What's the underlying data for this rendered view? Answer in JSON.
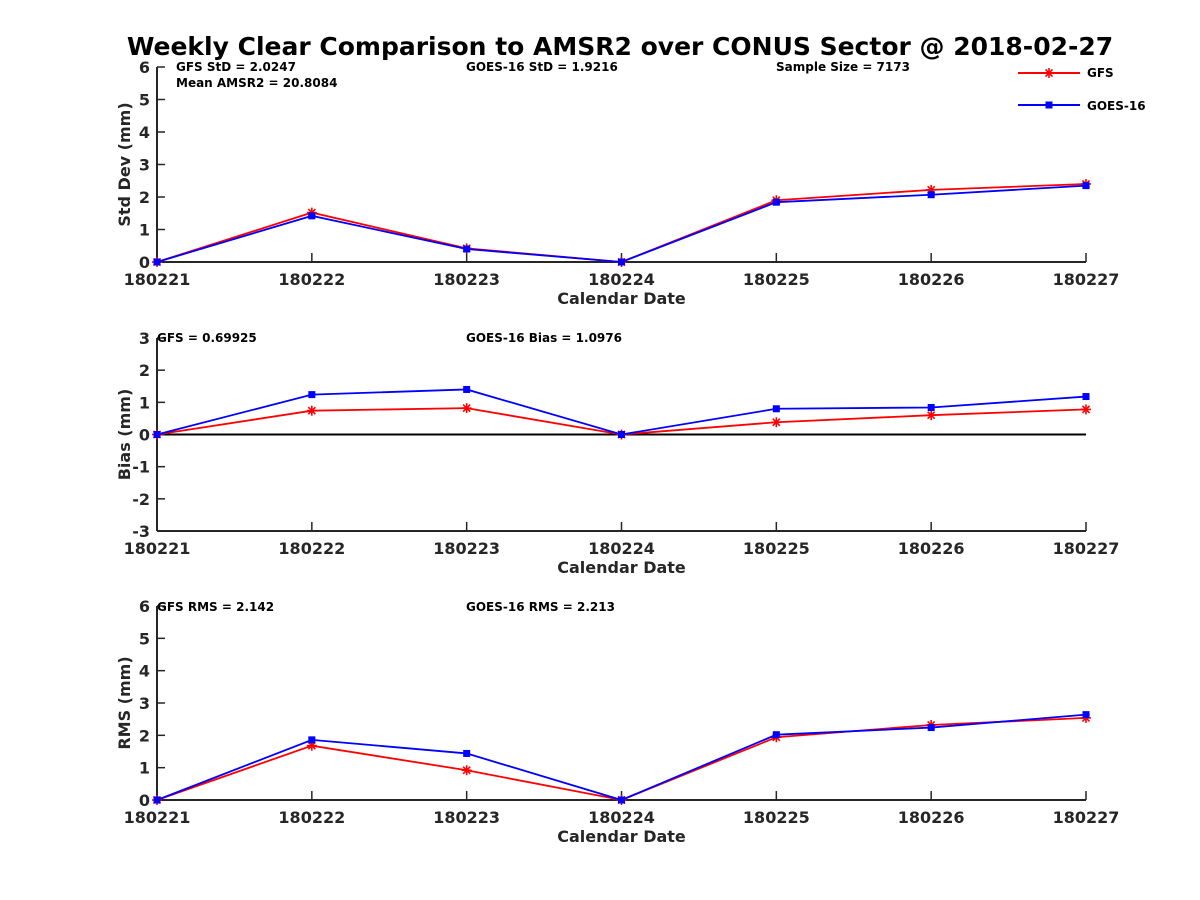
{
  "chart_data": {
    "type": "line",
    "title": "Weekly Clear Comparison to AMSR2 over CONUS Sector @ 2018-02-27",
    "legend": {
      "placement": "top-right",
      "entries": [
        {
          "name": "GFS",
          "color": "#ff0000",
          "marker": "asterisk"
        },
        {
          "name": "GOES-16",
          "color": "#0000ff",
          "marker": "square"
        }
      ]
    },
    "panels": [
      {
        "id": "stddev",
        "xlabel": "Calendar Date",
        "ylabel": "Std Dev (mm)",
        "ylim": [
          0,
          6
        ],
        "yticks": [
          "0",
          "1",
          "2",
          "3",
          "4",
          "5",
          "6"
        ],
        "categories": [
          "180221",
          "180222",
          "180223",
          "180224",
          "180225",
          "180226",
          "180227"
        ],
        "zero_line": false,
        "annotations": [
          "GFS StD = 2.0247",
          "Mean AMSR2 = 20.8084",
          "GOES-16 StD = 1.9216",
          "Sample Size = 7173"
        ],
        "series": [
          {
            "name": "GFS",
            "color": "#ff0000",
            "values": [
              0,
              1.52,
              0.42,
              0,
              1.9,
              2.22,
              2.4
            ]
          },
          {
            "name": "GOES-16",
            "color": "#0000ff",
            "values": [
              0,
              1.42,
              0.4,
              0,
              1.84,
              2.07,
              2.35
            ]
          }
        ]
      },
      {
        "id": "bias",
        "xlabel": "Calendar Date",
        "ylabel": "Bias (mm)",
        "ylim": [
          -3,
          3
        ],
        "yticks": [
          "-3",
          "-2",
          "-1",
          "0",
          "1",
          "2",
          "3"
        ],
        "categories": [
          "180221",
          "180222",
          "180223",
          "180224",
          "180225",
          "180226",
          "180227"
        ],
        "zero_line": true,
        "annotations": [
          "GFS = 0.69925",
          "GOES-16 Bias  = 1.0976"
        ],
        "series": [
          {
            "name": "GFS",
            "color": "#ff0000",
            "values": [
              0,
              0.74,
              0.82,
              0,
              0.38,
              0.6,
              0.78
            ]
          },
          {
            "name": "GOES-16",
            "color": "#0000ff",
            "values": [
              0,
              1.24,
              1.4,
              0,
              0.8,
              0.84,
              1.18
            ]
          }
        ]
      },
      {
        "id": "rms",
        "xlabel": "Calendar Date",
        "ylabel": "RMS (mm)",
        "ylim": [
          0,
          6
        ],
        "yticks": [
          "0",
          "1",
          "2",
          "3",
          "4",
          "5",
          "6"
        ],
        "categories": [
          "180221",
          "180222",
          "180223",
          "180224",
          "180225",
          "180226",
          "180227"
        ],
        "zero_line": false,
        "annotations": [
          "GFS RMS = 2.142",
          "GOES-16 RMS = 2.213"
        ],
        "series": [
          {
            "name": "GFS",
            "color": "#ff0000",
            "values": [
              0,
              1.68,
              0.92,
              0,
              1.94,
              2.32,
              2.54
            ]
          },
          {
            "name": "GOES-16",
            "color": "#0000ff",
            "values": [
              0,
              1.86,
              1.44,
              0,
              2.02,
              2.24,
              2.64
            ]
          }
        ]
      }
    ]
  }
}
